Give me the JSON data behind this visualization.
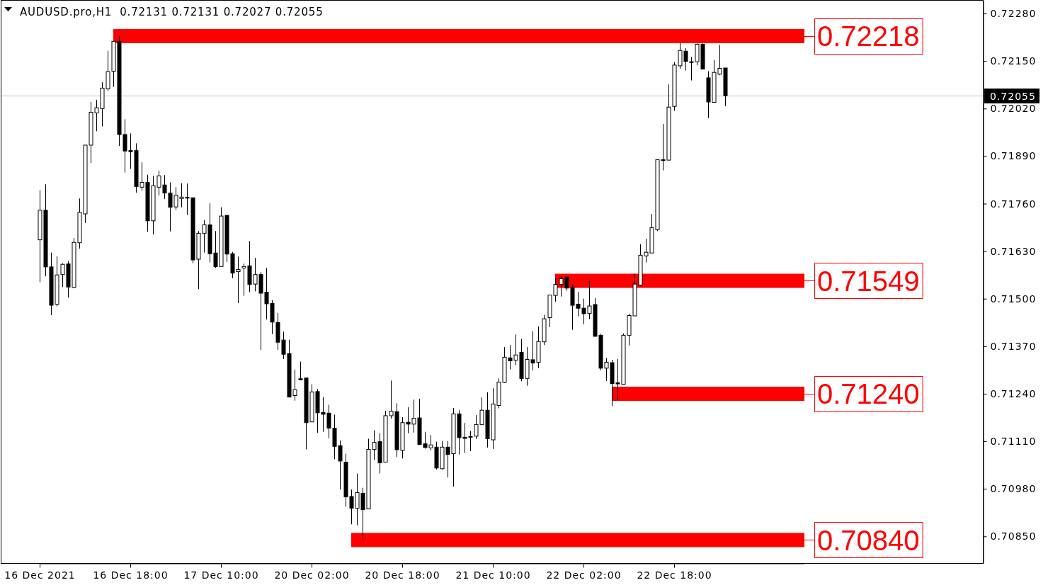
{
  "chart_data": {
    "type": "candlestick",
    "title": "AUDUSD.pro,H1  0.72131 0.72131 0.72027 0.72055",
    "legend": "right",
    "categories": [
      "16 Dec 2021",
      null,
      null,
      null,
      null,
      null,
      null,
      null,
      null,
      null,
      null,
      null,
      null,
      null,
      null,
      null,
      "16 Dec 18:00",
      null,
      null,
      null,
      null,
      null,
      null,
      null,
      null,
      null,
      null,
      null,
      null,
      null,
      null,
      null,
      "17 Dec 10:00",
      null,
      null,
      null,
      null,
      null,
      null,
      null,
      null,
      null,
      null,
      null,
      null,
      null,
      null,
      null,
      "20 Dec 02:00",
      null,
      null,
      null,
      null,
      null,
      null,
      null,
      null,
      null,
      null,
      null,
      null,
      null,
      null,
      null,
      "20 Dec 18:00",
      null,
      null,
      null,
      null,
      null,
      null,
      null,
      null,
      null,
      null,
      null,
      null,
      null,
      null,
      null,
      "21 Dec 10:00",
      null,
      null,
      null,
      null,
      null,
      null,
      null,
      null,
      null,
      null,
      null,
      null,
      null,
      null,
      null,
      "22 Dec 02:00",
      null,
      null,
      null,
      null,
      null,
      null,
      null,
      null,
      null,
      null,
      null,
      null,
      null,
      null,
      null,
      "22 Dec 18:00",
      null,
      null,
      null,
      null,
      null,
      null,
      null,
      null,
      null,
      null,
      null,
      null,
      null,
      null,
      null,
      null,
      null,
      null,
      null,
      null,
      null,
      null,
      null
    ],
    "ohlc": [
      [
        0.71661,
        0.71797,
        0.71545,
        0.71742
      ],
      [
        0.71742,
        0.71813,
        0.71561,
        0.71587
      ],
      [
        0.71587,
        0.71626,
        0.71455,
        0.71482
      ],
      [
        0.71485,
        0.71616,
        0.71479,
        0.71565
      ],
      [
        0.71566,
        0.71597,
        0.71532,
        0.71594
      ],
      [
        0.71595,
        0.71603,
        0.71503,
        0.71532
      ],
      [
        0.71531,
        0.71666,
        0.71529,
        0.71654
      ],
      [
        0.71653,
        0.71774,
        0.71637,
        0.71736
      ],
      [
        0.71732,
        0.7192,
        0.71707,
        0.7192
      ],
      [
        0.7192,
        0.72038,
        0.71871,
        0.7201
      ],
      [
        0.72008,
        0.72044,
        0.71958,
        0.72022
      ],
      [
        0.7202,
        0.72092,
        0.71971,
        0.72076
      ],
      [
        0.72074,
        0.72178,
        0.72068,
        0.72121
      ],
      [
        0.72122,
        0.72204,
        0.72079,
        0.72204
      ],
      [
        0.72204,
        0.72218,
        0.71918,
        0.71949
      ],
      [
        0.71949,
        0.71991,
        0.71845,
        0.71904
      ],
      [
        0.71905,
        0.71952,
        0.71855,
        0.71902
      ],
      [
        0.71905,
        0.71925,
        0.7179,
        0.71807
      ],
      [
        0.71805,
        0.71873,
        0.71795,
        0.71818
      ],
      [
        0.71818,
        0.71839,
        0.71683,
        0.71713
      ],
      [
        0.71713,
        0.71836,
        0.71676,
        0.71809
      ],
      [
        0.71805,
        0.7185,
        0.71782,
        0.71836
      ],
      [
        0.71811,
        0.71838,
        0.71773,
        0.71789
      ],
      [
        0.71789,
        0.71818,
        0.71684,
        0.7175
      ],
      [
        0.71751,
        0.71805,
        0.71742,
        0.71783
      ],
      [
        0.71774,
        0.71816,
        0.7175,
        0.71778
      ],
      [
        0.71777,
        0.71815,
        0.71729,
        0.71776
      ],
      [
        0.71776,
        0.71776,
        0.71597,
        0.71606
      ],
      [
        0.71608,
        0.71685,
        0.71526,
        0.71679
      ],
      [
        0.71679,
        0.71715,
        0.71626,
        0.71702
      ],
      [
        0.71702,
        0.71761,
        0.71599,
        0.71623
      ],
      [
        0.71625,
        0.71685,
        0.71584,
        0.71588
      ],
      [
        0.71588,
        0.7175,
        0.71588,
        0.71726
      ],
      [
        0.71728,
        0.71728,
        0.716,
        0.71622
      ],
      [
        0.71623,
        0.71628,
        0.71556,
        0.7157
      ],
      [
        0.71574,
        0.71615,
        0.71488,
        0.7158
      ],
      [
        0.71584,
        0.71596,
        0.71508,
        0.71588
      ],
      [
        0.7159,
        0.71658,
        0.71518,
        0.71539
      ],
      [
        0.7154,
        0.71612,
        0.7152,
        0.71566
      ],
      [
        0.71566,
        0.71573,
        0.7136,
        0.71515
      ],
      [
        0.71518,
        0.71584,
        0.71443,
        0.71486
      ],
      [
        0.71487,
        0.71496,
        0.71403,
        0.71436
      ],
      [
        0.71435,
        0.71461,
        0.7136,
        0.71381
      ],
      [
        0.71387,
        0.7141,
        0.71335,
        0.71348
      ],
      [
        0.7135,
        0.71388,
        0.71231,
        0.71231
      ],
      [
        0.71235,
        0.71306,
        0.71221,
        0.71251
      ],
      [
        0.71281,
        0.71328,
        0.71278,
        0.71278
      ],
      [
        0.71283,
        0.71283,
        0.71088,
        0.71161
      ],
      [
        0.71163,
        0.71266,
        0.71163,
        0.71245
      ],
      [
        0.71246,
        0.71253,
        0.71133,
        0.71188
      ],
      [
        0.71189,
        0.71231,
        0.71136,
        0.71184
      ],
      [
        0.71187,
        0.7121,
        0.71118,
        0.71146
      ],
      [
        0.71146,
        0.71183,
        0.71061,
        0.71096
      ],
      [
        0.71098,
        0.71112,
        0.70978,
        0.71056
      ],
      [
        0.71053,
        0.71076,
        0.70931,
        0.70958
      ],
      [
        0.70959,
        0.70978,
        0.70883,
        0.70927
      ],
      [
        0.70927,
        0.71022,
        0.7088,
        0.7097
      ],
      [
        0.70968,
        0.70983,
        0.7084,
        0.70923
      ],
      [
        0.70925,
        0.71117,
        0.70925,
        0.71088
      ],
      [
        0.71088,
        0.7114,
        0.71059,
        0.71107
      ],
      [
        0.71109,
        0.71132,
        0.71022,
        0.71051
      ],
      [
        0.71053,
        0.71193,
        0.71053,
        0.7118
      ],
      [
        0.7118,
        0.71276,
        0.71172,
        0.71192
      ],
      [
        0.71191,
        0.71214,
        0.71067,
        0.71087
      ],
      [
        0.71085,
        0.71176,
        0.71063,
        0.71161
      ],
      [
        0.71162,
        0.71203,
        0.71132,
        0.71157
      ],
      [
        0.71157,
        0.71224,
        0.71134,
        0.71173
      ],
      [
        0.71174,
        0.71226,
        0.71101,
        0.71101
      ],
      [
        0.71103,
        0.71136,
        0.7109,
        0.71093
      ],
      [
        0.71092,
        0.71127,
        0.71085,
        0.711
      ],
      [
        0.71094,
        0.71109,
        0.71033,
        0.71037
      ],
      [
        0.71035,
        0.71111,
        0.71033,
        0.71094
      ],
      [
        0.71094,
        0.71111,
        0.71011,
        0.71074
      ],
      [
        0.71076,
        0.71201,
        0.70986,
        0.71185
      ],
      [
        0.71185,
        0.71195,
        0.71074,
        0.7112
      ],
      [
        0.71121,
        0.7116,
        0.71078,
        0.71118
      ],
      [
        0.71121,
        0.71138,
        0.71083,
        0.71123
      ],
      [
        0.71124,
        0.71182,
        0.71116,
        0.71156
      ],
      [
        0.71156,
        0.7123,
        0.71154,
        0.71195
      ],
      [
        0.71195,
        0.71244,
        0.71093,
        0.71117
      ],
      [
        0.71114,
        0.71255,
        0.71089,
        0.71212
      ],
      [
        0.71208,
        0.71282,
        0.712,
        0.71272
      ],
      [
        0.71271,
        0.71368,
        0.71269,
        0.7134
      ],
      [
        0.71338,
        0.71373,
        0.71306,
        0.7133
      ],
      [
        0.71332,
        0.71402,
        0.71318,
        0.71346
      ],
      [
        0.71353,
        0.7139,
        0.71274,
        0.71282
      ],
      [
        0.71282,
        0.71368,
        0.71262,
        0.71334
      ],
      [
        0.71333,
        0.71411,
        0.71304,
        0.71324
      ],
      [
        0.71326,
        0.71424,
        0.7131,
        0.71383
      ],
      [
        0.71382,
        0.71456,
        0.71373,
        0.71445
      ],
      [
        0.71448,
        0.7151,
        0.71422,
        0.7151
      ],
      [
        0.71509,
        0.71557,
        0.71492,
        0.71539
      ],
      [
        0.71539,
        0.71561,
        0.71506,
        0.71555
      ],
      [
        0.71559,
        0.71559,
        0.71522,
        0.71529
      ],
      [
        0.7153,
        0.71539,
        0.71415,
        0.71482
      ],
      [
        0.71485,
        0.71519,
        0.71452,
        0.71474
      ],
      [
        0.71474,
        0.715,
        0.7143,
        0.71459
      ],
      [
        0.7146,
        0.71549,
        0.71444,
        0.7148
      ],
      [
        0.71484,
        0.71502,
        0.71397,
        0.71397
      ],
      [
        0.714,
        0.71404,
        0.71304,
        0.7131
      ],
      [
        0.7131,
        0.71338,
        0.71275,
        0.71326
      ],
      [
        0.71325,
        0.71333,
        0.71206,
        0.71268
      ],
      [
        0.7127,
        0.71335,
        0.71222,
        0.71267
      ],
      [
        0.71266,
        0.71405,
        0.71266,
        0.714
      ],
      [
        0.714,
        0.71459,
        0.71372,
        0.71454
      ],
      [
        0.71453,
        0.71569,
        0.71453,
        0.7154
      ],
      [
        0.71537,
        0.71649,
        0.71537,
        0.71619
      ],
      [
        0.71617,
        0.71664,
        0.71599,
        0.71627
      ],
      [
        0.71625,
        0.71732,
        0.71625,
        0.71694
      ],
      [
        0.71689,
        0.7188,
        0.71685,
        0.7188
      ],
      [
        0.7188,
        0.71978,
        0.71851,
        0.71878
      ],
      [
        0.71879,
        0.72086,
        0.71879,
        0.72024
      ],
      [
        0.72026,
        0.72147,
        0.72014,
        0.72139
      ],
      [
        0.72137,
        0.72199,
        0.72129,
        0.72179
      ],
      [
        0.72177,
        0.72185,
        0.72124,
        0.72149
      ],
      [
        0.72148,
        0.72161,
        0.72097,
        0.72146
      ],
      [
        0.72148,
        0.72198,
        0.72138,
        0.72196
      ],
      [
        0.72196,
        0.72198,
        0.72128,
        0.72128
      ],
      [
        0.72104,
        0.72122,
        0.71994,
        0.72038
      ],
      [
        0.72037,
        0.72153,
        0.72037,
        0.72119
      ],
      [
        0.72114,
        0.72194,
        0.72111,
        0.7213
      ],
      [
        0.72131,
        0.72131,
        0.72027,
        0.72055
      ],
      null,
      null,
      null,
      null,
      null,
      null,
      null,
      null,
      null,
      null,
      null,
      null,
      null,
      null
    ],
    "series": [
      {
        "type": "line",
        "name": "0.72218",
        "color": "#ff0000",
        "values": [
          null,
          null,
          null,
          null,
          null,
          null,
          null,
          null,
          null,
          null,
          null,
          null,
          null,
          0.72218,
          0.72218,
          0.72218,
          0.72218,
          0.72218,
          0.72218,
          0.72218,
          0.72218,
          0.72218,
          0.72218,
          0.72218,
          0.72218,
          0.72218,
          0.72218,
          0.72218,
          0.72218,
          0.72218,
          0.72218,
          0.72218,
          0.72218,
          0.72218,
          0.72218,
          0.72218,
          0.72218,
          0.72218,
          0.72218,
          0.72218,
          0.72218,
          0.72218,
          0.72218,
          0.72218,
          0.72218,
          0.72218,
          0.72218,
          0.72218,
          0.72218,
          0.72218,
          0.72218,
          0.72218,
          0.72218,
          0.72218,
          0.72218,
          0.72218,
          0.72218,
          0.72218,
          0.72218,
          0.72218,
          0.72218,
          0.72218,
          0.72218,
          0.72218,
          0.72218,
          0.72218,
          0.72218,
          0.72218,
          0.72218,
          0.72218,
          0.72218,
          0.72218,
          0.72218,
          0.72218,
          0.72218,
          0.72218,
          0.72218,
          0.72218,
          0.72218,
          0.72218,
          0.72218,
          0.72218,
          0.72218,
          0.72218,
          0.72218,
          0.72218,
          0.72218,
          0.72218,
          0.72218,
          0.72218,
          0.72218,
          0.72218,
          0.72218,
          0.72218,
          0.72218,
          0.72218,
          0.72218,
          0.72218,
          0.72218,
          0.72218,
          0.72218,
          0.72218,
          0.72218,
          0.72218,
          0.72218,
          0.72218,
          0.72218,
          0.72218,
          0.72218,
          0.72218,
          0.72218,
          0.72218,
          0.72218,
          0.72218,
          0.72218,
          0.72218,
          0.72218,
          0.72218,
          0.72218,
          0.72218,
          0.72218,
          0.72218,
          0.72218,
          0.72218,
          0.72218,
          0.72218,
          0.72218,
          0.72218,
          0.72218,
          0.72218,
          0.72218,
          0.72218,
          0.72218,
          0.72218,
          0.72218,
          0.72218
        ]
      },
      {
        "type": "line",
        "name": "0.71549",
        "color": "#ff0000",
        "values": [
          null,
          null,
          null,
          null,
          null,
          null,
          null,
          null,
          null,
          null,
          null,
          null,
          null,
          null,
          null,
          null,
          null,
          null,
          null,
          null,
          null,
          null,
          null,
          null,
          null,
          null,
          null,
          null,
          null,
          null,
          null,
          null,
          null,
          null,
          null,
          null,
          null,
          null,
          null,
          null,
          null,
          null,
          null,
          null,
          null,
          null,
          null,
          null,
          null,
          null,
          null,
          null,
          null,
          null,
          null,
          null,
          null,
          null,
          null,
          null,
          null,
          null,
          null,
          null,
          null,
          null,
          null,
          null,
          null,
          null,
          null,
          null,
          null,
          null,
          null,
          null,
          null,
          null,
          null,
          null,
          null,
          null,
          null,
          null,
          null,
          null,
          null,
          null,
          null,
          null,
          null,
          0.71549,
          0.71549,
          0.71549,
          0.71549,
          0.71549,
          0.71549,
          0.71549,
          0.71549,
          0.71549,
          0.71549,
          0.71549,
          0.71549,
          0.71549,
          0.71549,
          0.71549,
          0.71549,
          0.71549,
          0.71549,
          0.71549,
          0.71549,
          0.71549,
          0.71549,
          0.71549,
          0.71549,
          0.71549,
          0.71549,
          0.71549,
          0.71549,
          0.71549,
          0.71549,
          0.71549,
          0.71549,
          0.71549,
          0.71549,
          0.71549,
          0.71549,
          0.71549,
          0.71549,
          0.71549,
          0.71549,
          0.71549,
          0.71549,
          0.71549,
          0.71549,
          0.71549
        ]
      },
      {
        "type": "line",
        "name": "0.71240",
        "color": "#ff0000",
        "values": [
          null,
          null,
          null,
          null,
          null,
          null,
          null,
          null,
          null,
          null,
          null,
          null,
          null,
          null,
          null,
          null,
          null,
          null,
          null,
          null,
          null,
          null,
          null,
          null,
          null,
          null,
          null,
          null,
          null,
          null,
          null,
          null,
          null,
          null,
          null,
          null,
          null,
          null,
          null,
          null,
          null,
          null,
          null,
          null,
          null,
          null,
          null,
          null,
          null,
          null,
          null,
          null,
          null,
          null,
          null,
          null,
          null,
          null,
          null,
          null,
          null,
          null,
          null,
          null,
          null,
          null,
          null,
          null,
          null,
          null,
          null,
          null,
          null,
          null,
          null,
          null,
          null,
          null,
          null,
          null,
          null,
          null,
          null,
          null,
          null,
          null,
          null,
          null,
          null,
          null,
          null,
          null,
          null,
          null,
          null,
          null,
          null,
          null,
          null,
          null,
          null,
          0.7124,
          0.7124,
          0.7124,
          0.7124,
          0.7124,
          0.7124,
          0.7124,
          0.7124,
          0.7124,
          0.7124,
          0.7124,
          0.7124,
          0.7124,
          0.7124,
          0.7124,
          0.7124,
          0.7124,
          0.7124,
          0.7124,
          0.7124,
          0.7124,
          0.7124,
          0.7124,
          0.7124,
          0.7124,
          0.7124,
          0.7124,
          0.7124,
          0.7124,
          0.7124,
          0.7124,
          0.7124,
          0.7124,
          0.7124,
          0.7124
        ]
      },
      {
        "type": "line",
        "name": "0.70840",
        "color": "#ff0000",
        "values": [
          null,
          null,
          null,
          null,
          null,
          null,
          null,
          null,
          null,
          null,
          null,
          null,
          null,
          null,
          null,
          null,
          null,
          null,
          null,
          null,
          null,
          null,
          null,
          null,
          null,
          null,
          null,
          null,
          null,
          null,
          null,
          null,
          null,
          null,
          null,
          null,
          null,
          null,
          null,
          null,
          null,
          null,
          null,
          null,
          null,
          null,
          null,
          null,
          null,
          null,
          null,
          null,
          null,
          null,
          null,
          0.7084,
          0.7084,
          0.7084,
          0.7084,
          0.7084,
          0.7084,
          0.7084,
          0.7084,
          0.7084,
          0.7084,
          0.7084,
          0.7084,
          0.7084,
          0.7084,
          0.7084,
          0.7084,
          0.7084,
          0.7084,
          0.7084,
          0.7084,
          0.7084,
          0.7084,
          0.7084,
          0.7084,
          0.7084,
          0.7084,
          0.7084,
          0.7084,
          0.7084,
          0.7084,
          0.7084,
          0.7084,
          0.7084,
          0.7084,
          0.7084,
          0.7084,
          0.7084,
          0.7084,
          0.7084,
          0.7084,
          0.7084,
          0.7084,
          0.7084,
          0.7084,
          0.7084,
          0.7084,
          0.7084,
          0.7084,
          0.7084,
          0.7084,
          0.7084,
          0.7084,
          0.7084,
          0.7084,
          0.7084,
          0.7084,
          0.7084,
          0.7084,
          0.7084,
          0.7084,
          0.7084,
          0.7084,
          0.7084,
          0.7084,
          0.7084,
          0.7084,
          0.7084,
          0.7084,
          0.7084,
          0.7084,
          0.7084,
          0.7084,
          0.7084,
          0.7084,
          0.7084,
          0.7084,
          0.7084,
          0.7084,
          0.7084,
          0.7084,
          0.7084
        ]
      }
    ],
    "ylim": [
      0.70777,
      0.72315
    ],
    "yticks": [
      {
        "value": 0.7228,
        "label": "0.72280"
      },
      {
        "value": 0.7215,
        "label": "0.72150"
      },
      {
        "value": 0.7202,
        "label": "0.72020"
      },
      {
        "value": 0.7189,
        "label": "0.71890"
      },
      {
        "value": 0.7176,
        "label": "0.71760"
      },
      {
        "value": 0.7163,
        "label": "0.71630"
      },
      {
        "value": 0.715,
        "label": "0.71500"
      },
      {
        "value": 0.7137,
        "label": "0.71370"
      },
      {
        "value": 0.7124,
        "label": "0.71240"
      },
      {
        "value": 0.7111,
        "label": "0.71110"
      },
      {
        "value": 0.7098,
        "label": "0.70980"
      },
      {
        "value": 0.7085,
        "label": "0.70850"
      }
    ],
    "ref_lines": [
      {
        "axis": "y",
        "value": 0.72055,
        "label": "0.72055",
        "color": "#c0c0c0"
      }
    ]
  }
}
